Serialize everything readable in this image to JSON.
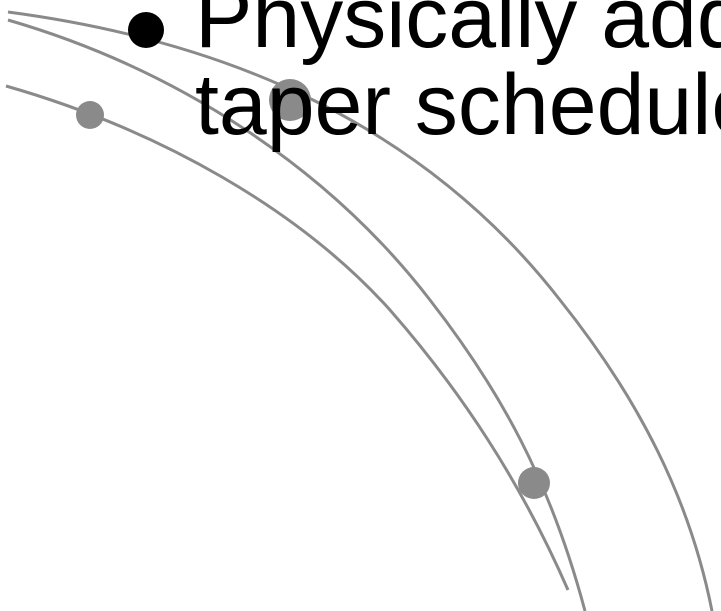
{
  "slide": {
    "bullet": {
      "line1": "Physically add",
      "line2": "taper schedule"
    }
  },
  "colors": {
    "curve": "#8a8a8a",
    "text": "#000000",
    "background": "#ffffff"
  }
}
